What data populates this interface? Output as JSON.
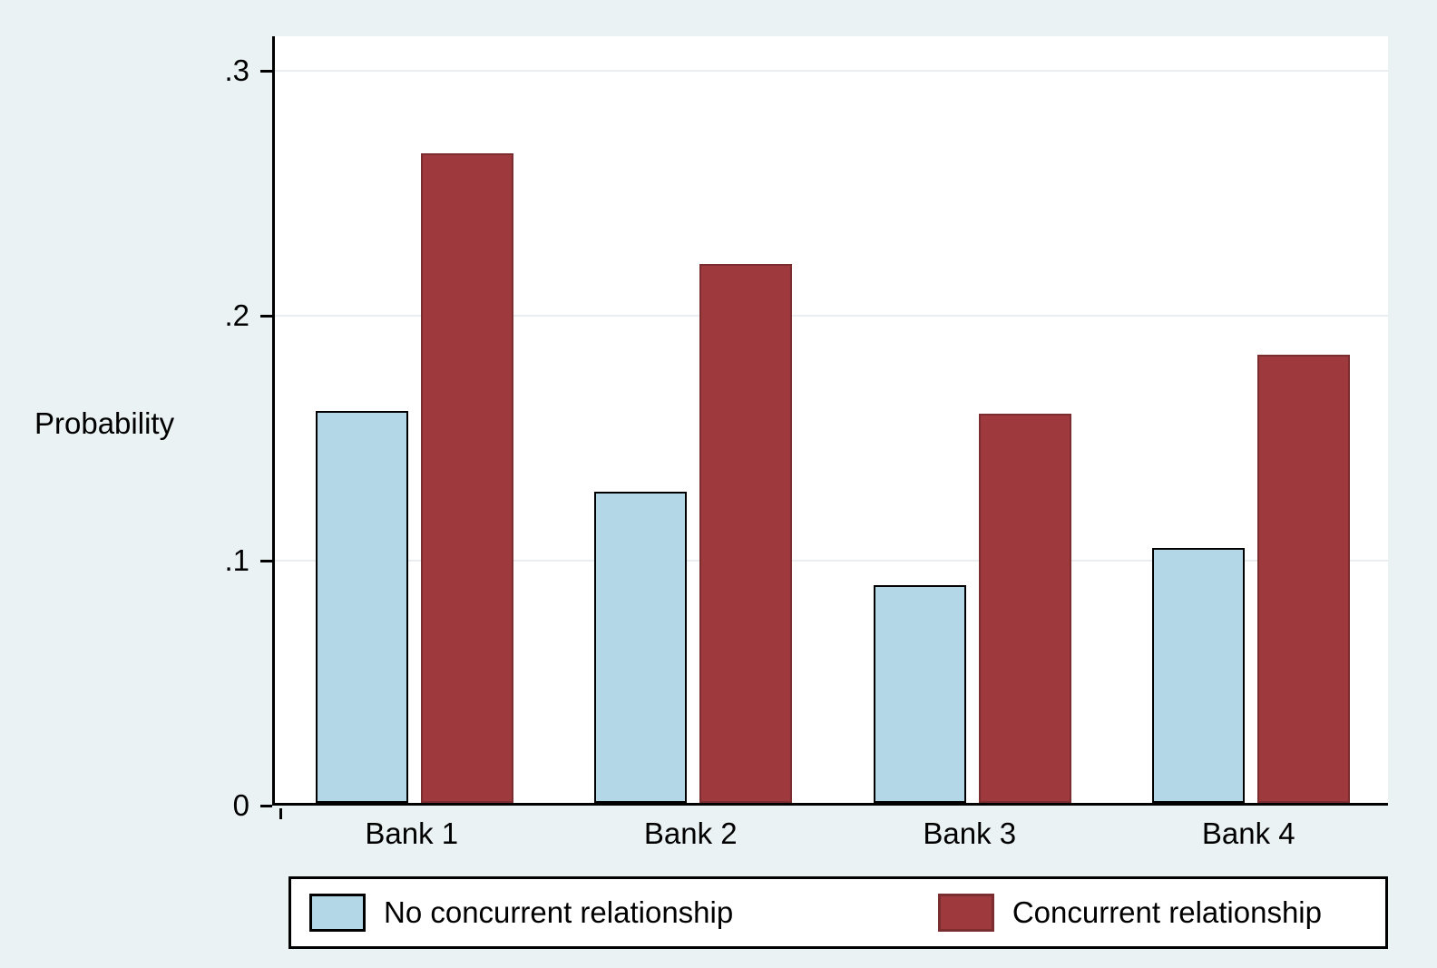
{
  "chart_data": {
    "type": "bar",
    "categories": [
      "Bank 1",
      "Bank 2",
      "Bank 3",
      "Bank 4"
    ],
    "series": [
      {
        "name": "No concurrent relationship",
        "color": "#b3d7e6",
        "outline": "#000000",
        "values": [
          0.16,
          0.127,
          0.089,
          0.104
        ]
      },
      {
        "name": "Concurrent relationship",
        "color": "#9e3a3e",
        "outline": "#7b2d30",
        "values": [
          0.265,
          0.22,
          0.159,
          0.183
        ]
      }
    ],
    "title": "",
    "xlabel": "",
    "ylabel": "Probability",
    "yticks": [
      0,
      0.1,
      0.2,
      0.3
    ],
    "ytick_labels": [
      "0",
      ".1",
      ".2",
      ".3"
    ],
    "ylim": [
      0,
      0.314
    ],
    "grid": true,
    "legend_position": "bottom"
  },
  "colors": {
    "background": "#eaf2f3",
    "plot_background": "#ffffff",
    "grid": "#e9eff1",
    "axis": "#000000"
  }
}
